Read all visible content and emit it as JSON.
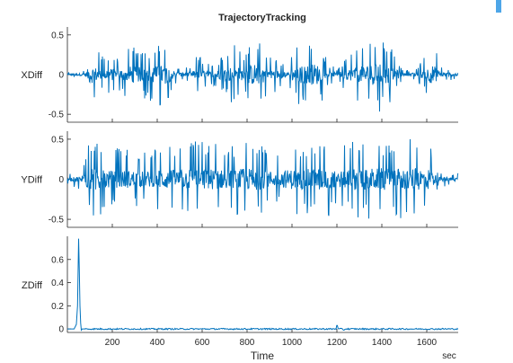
{
  "chart_data": {
    "type": "line",
    "title": "TrajectoryTracking",
    "xlabel": "Time",
    "xunit": "sec",
    "xlim": [
      0,
      1740
    ],
    "x_ticks": [
      200,
      400,
      600,
      800,
      1000,
      1200,
      1400,
      1600
    ],
    "series_color": "#0072BD",
    "accent_color": "#4DA6E8",
    "axes_color": "#262626",
    "grid": false,
    "subplots": [
      {
        "ylabel": "XDiff",
        "ylim": [
          -0.6,
          0.6
        ],
        "y_ticks": [
          -0.5,
          0,
          0.5
        ],
        "envelope": [
          [
            0,
            0.03
          ],
          [
            80,
            0.06
          ],
          [
            100,
            0.42
          ],
          [
            150,
            0.25
          ],
          [
            190,
            0.3
          ],
          [
            230,
            0.2
          ],
          [
            280,
            0.38
          ],
          [
            320,
            0.35
          ],
          [
            350,
            0.3
          ],
          [
            400,
            0.4
          ],
          [
            440,
            0.45
          ],
          [
            470,
            0.2
          ],
          [
            500,
            0.08
          ],
          [
            540,
            0.1
          ],
          [
            580,
            0.25
          ],
          [
            620,
            0.15
          ],
          [
            650,
            0.15
          ],
          [
            700,
            0.25
          ],
          [
            740,
            0.4
          ],
          [
            780,
            0.25
          ],
          [
            830,
            0.5
          ],
          [
            860,
            0.45
          ],
          [
            900,
            0.3
          ],
          [
            950,
            0.15
          ],
          [
            980,
            0.1
          ],
          [
            1000,
            0.3
          ],
          [
            1040,
            0.4
          ],
          [
            1080,
            0.45
          ],
          [
            1100,
            0.5
          ],
          [
            1130,
            0.4
          ],
          [
            1160,
            0.15
          ],
          [
            1200,
            0.08
          ],
          [
            1250,
            0.25
          ],
          [
            1300,
            0.35
          ],
          [
            1340,
            0.45
          ],
          [
            1380,
            0.5
          ],
          [
            1420,
            0.42
          ],
          [
            1460,
            0.25
          ],
          [
            1500,
            0.05
          ],
          [
            1530,
            0.07
          ],
          [
            1560,
            0.08
          ],
          [
            1600,
            0.3
          ],
          [
            1630,
            0.45
          ],
          [
            1660,
            0.1
          ],
          [
            1740,
            0.05
          ]
        ]
      },
      {
        "ylabel": "YDiff",
        "ylim": [
          -0.6,
          0.6
        ],
        "y_ticks": [
          -0.5,
          0,
          0.5
        ],
        "envelope": [
          [
            0,
            0.05
          ],
          [
            60,
            0.15
          ],
          [
            90,
            0.45
          ],
          [
            140,
            0.5
          ],
          [
            200,
            0.38
          ],
          [
            260,
            0.4
          ],
          [
            330,
            0.38
          ],
          [
            380,
            0.35
          ],
          [
            430,
            0.45
          ],
          [
            500,
            0.4
          ],
          [
            560,
            0.5
          ],
          [
            600,
            0.5
          ],
          [
            660,
            0.45
          ],
          [
            720,
            0.4
          ],
          [
            780,
            0.48
          ],
          [
            830,
            0.5
          ],
          [
            880,
            0.45
          ],
          [
            930,
            0.3
          ],
          [
            990,
            0.45
          ],
          [
            1050,
            0.45
          ],
          [
            1110,
            0.5
          ],
          [
            1160,
            0.48
          ],
          [
            1200,
            0.35
          ],
          [
            1260,
            0.48
          ],
          [
            1320,
            0.5
          ],
          [
            1390,
            0.5
          ],
          [
            1440,
            0.5
          ],
          [
            1500,
            0.5
          ],
          [
            1560,
            0.5
          ],
          [
            1610,
            0.48
          ],
          [
            1650,
            0.1
          ],
          [
            1740,
            0.08
          ]
        ]
      },
      {
        "ylabel": "ZDiff",
        "ylim": [
          -0.03,
          0.8
        ],
        "y_ticks": [
          0,
          0.2,
          0.4,
          0.6
        ],
        "trace": [
          [
            0,
            0.0
          ],
          [
            30,
            0.0
          ],
          [
            40,
            0.04
          ],
          [
            45,
            0.2
          ],
          [
            50,
            0.78
          ],
          [
            53,
            0.5
          ],
          [
            56,
            0.2
          ],
          [
            59,
            0.05
          ],
          [
            62,
            -0.01
          ],
          [
            66,
            0.0
          ],
          [
            80,
            0.0
          ]
        ],
        "noise_amplitude": 0.012,
        "spikes": [
          [
            1200,
            0.03
          ],
          [
            1230,
            -0.01
          ]
        ]
      }
    ]
  }
}
